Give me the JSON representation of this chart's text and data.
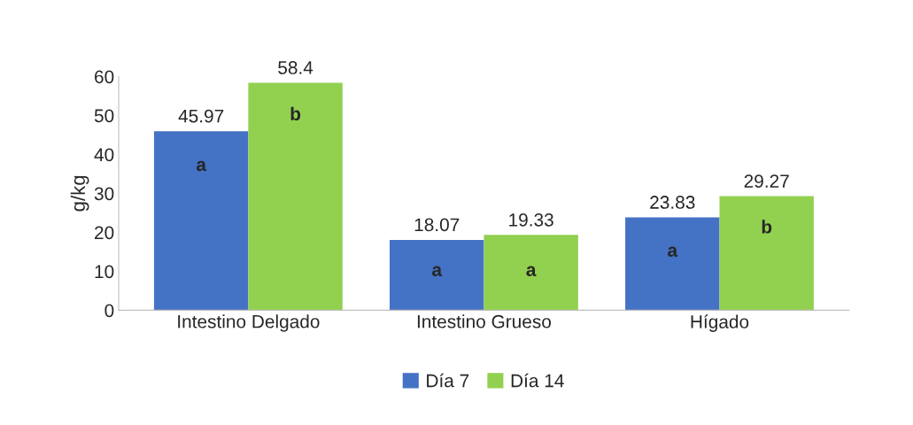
{
  "chart_data": {
    "type": "bar",
    "ylabel": "g/kg",
    "categories": [
      "Intestino Delgado",
      "Intestino Grueso",
      "Hígado"
    ],
    "series": [
      {
        "name": "Día 7",
        "color": "#4472c4",
        "values": [
          45.97,
          18.07,
          23.83
        ]
      },
      {
        "name": "Día 14",
        "color": "#92d050",
        "values": [
          58.4,
          19.33,
          29.27
        ]
      }
    ],
    "ylim": [
      0,
      60
    ],
    "yticks": [
      0,
      10,
      20,
      30,
      40,
      50,
      60
    ],
    "data_labels": true,
    "legend": "bottom",
    "grid": false,
    "annotations": [
      {
        "text": "a",
        "x": "Intestino Delgado",
        "y": 37
      },
      {
        "text": "b",
        "x": "Intestino Delgado",
        "y": 50
      },
      {
        "text": "a",
        "x": "Intestino Grueso",
        "y": 10
      },
      {
        "text": "a",
        "x": "Intestino Grueso",
        "y": 10
      },
      {
        "text": "a",
        "x": "Hígado",
        "y": 15
      },
      {
        "text": "b",
        "x": "Hígado",
        "y": 21
      }
    ]
  }
}
